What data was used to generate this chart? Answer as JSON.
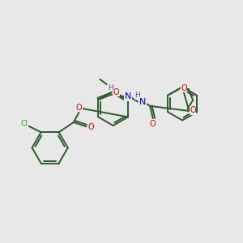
{
  "bg_color": "#e8e8e8",
  "bond_color": "#2d5a2d",
  "bond_width": 1.4,
  "atom_colors": {
    "O": "#cc0000",
    "N": "#0000cc",
    "Cl": "#00bb00",
    "H": "#555577",
    "C": "#2d5a2d"
  },
  "figsize": [
    3.0,
    3.0
  ],
  "dpi": 100,
  "xlim": [
    0,
    10
  ],
  "ylim": [
    0,
    10
  ]
}
